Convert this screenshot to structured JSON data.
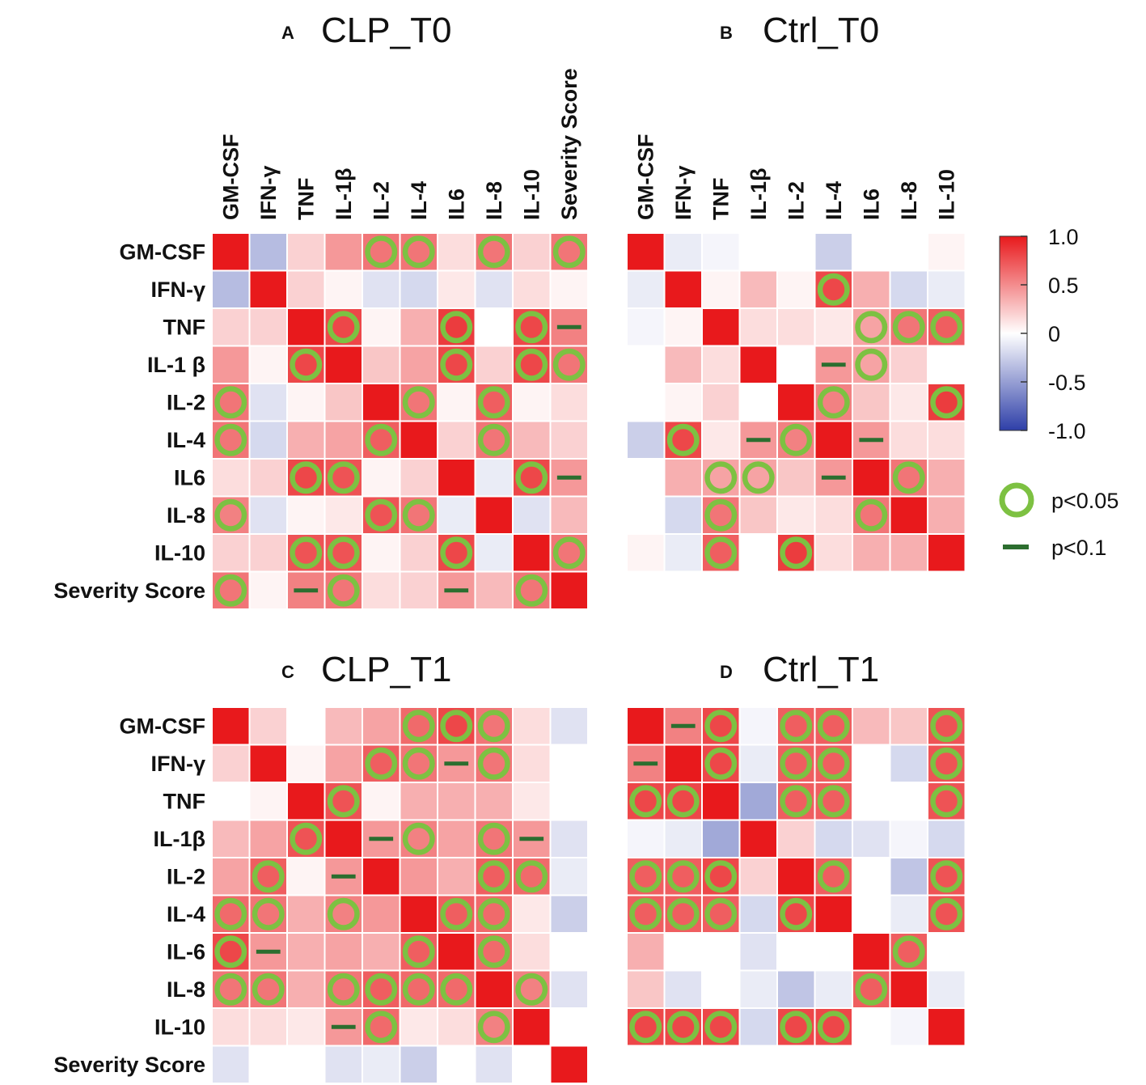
{
  "colors": {
    "positive": "#e8191c",
    "negative": "#2e3fa8",
    "neutral": "#ffffff",
    "sig_circle": "#7dc142",
    "trend_bar": "#2c6e2f"
  },
  "chart_data": [
    {
      "type": "heatmap",
      "panel": "A",
      "title": "CLP_T0",
      "show_column_labels": true,
      "columns": [
        "GM-CSF",
        "IFN-γ",
        "TNF",
        "IL-1β",
        "IL-2",
        "IL-4",
        "IL6",
        "IL-8",
        "IL-10",
        "Severity Score"
      ],
      "rows": [
        "GM-CSF",
        "IFN-γ",
        "TNF",
        "IL-1 β",
        "IL-2",
        "IL-4",
        "IL6",
        "IL-8",
        "IL-10",
        "Severity Score"
      ],
      "values": [
        [
          1,
          -0.35,
          0.2,
          0.45,
          0.6,
          0.6,
          0.15,
          0.6,
          0.2,
          0.6
        ],
        [
          -0.35,
          1,
          0.2,
          0.05,
          -0.15,
          -0.2,
          0.1,
          -0.15,
          0.15,
          0.05
        ],
        [
          0.2,
          0.2,
          1,
          0.8,
          0.05,
          0.35,
          0.85,
          0,
          0.8,
          0.55
        ],
        [
          0.45,
          0.05,
          0.8,
          1,
          0.25,
          0.4,
          0.8,
          0.2,
          0.8,
          0.6
        ],
        [
          0.6,
          -0.15,
          0.05,
          0.25,
          1,
          0.6,
          0.05,
          0.7,
          0.05,
          0.15
        ],
        [
          0.6,
          -0.2,
          0.35,
          0.4,
          0.7,
          1,
          0.2,
          0.6,
          0.3,
          0.2
        ],
        [
          0.15,
          0.2,
          0.8,
          0.75,
          0.05,
          0.2,
          1,
          -0.1,
          0.8,
          0.45
        ],
        [
          0.55,
          -0.15,
          0.05,
          0.1,
          0.75,
          0.6,
          -0.1,
          1,
          -0.15,
          0.3
        ],
        [
          0.2,
          0.2,
          0.75,
          0.75,
          0.05,
          0.2,
          0.8,
          -0.1,
          1,
          0.6
        ],
        [
          0.6,
          0.05,
          0.55,
          0.6,
          0.15,
          0.2,
          0.45,
          0.3,
          0.6,
          1
        ]
      ],
      "significance": [
        [
          0,
          0,
          0,
          0,
          2,
          2,
          0,
          2,
          0,
          2
        ],
        [
          0,
          0,
          0,
          0,
          0,
          0,
          0,
          0,
          0,
          0
        ],
        [
          0,
          0,
          0,
          2,
          0,
          0,
          2,
          0,
          2,
          1
        ],
        [
          0,
          0,
          2,
          0,
          0,
          0,
          2,
          0,
          2,
          2
        ],
        [
          2,
          0,
          0,
          0,
          0,
          2,
          0,
          2,
          0,
          0
        ],
        [
          2,
          0,
          0,
          0,
          2,
          0,
          0,
          2,
          0,
          0
        ],
        [
          0,
          0,
          2,
          2,
          0,
          0,
          0,
          0,
          2,
          1
        ],
        [
          2,
          0,
          0,
          0,
          2,
          2,
          0,
          0,
          0,
          0
        ],
        [
          0,
          0,
          2,
          2,
          0,
          0,
          2,
          0,
          0,
          2
        ],
        [
          2,
          0,
          1,
          2,
          0,
          0,
          1,
          0,
          2,
          0
        ]
      ]
    },
    {
      "type": "heatmap",
      "panel": "B",
      "title": "Ctrl_T0",
      "show_column_labels": true,
      "columns": [
        "GM-CSF",
        "IFN-γ",
        "TNF",
        "IL-1β",
        "IL-2",
        "IL-4",
        "IL6",
        "IL-8",
        "IL-10"
      ],
      "rows": [
        "GM-CSF",
        "IFN-γ",
        "TNF",
        "IL-1β",
        "IL-2",
        "IL-4",
        "IL6",
        "IL-8",
        "IL-10"
      ],
      "values": [
        [
          1,
          -0.1,
          -0.05,
          0,
          0,
          -0.25,
          0,
          0,
          0.05
        ],
        [
          -0.1,
          1,
          0.05,
          0.3,
          0.05,
          0.8,
          0.35,
          -0.2,
          -0.1
        ],
        [
          -0.05,
          0.05,
          1,
          0.15,
          0.15,
          0.1,
          0.4,
          0.6,
          0.7
        ],
        [
          0,
          0.3,
          0.15,
          1,
          0,
          0.45,
          0.4,
          0.2,
          0
        ],
        [
          0,
          0.05,
          0.2,
          0,
          1,
          0.55,
          0.25,
          0.1,
          0.85
        ],
        [
          -0.25,
          0.8,
          0.1,
          0.45,
          0.55,
          1,
          0.45,
          0.15,
          0.15
        ],
        [
          0,
          0.35,
          0.4,
          0.4,
          0.25,
          0.45,
          1,
          0.6,
          0.35
        ],
        [
          0,
          -0.2,
          0.6,
          0.25,
          0.1,
          0.15,
          0.6,
          1,
          0.35
        ],
        [
          0.05,
          -0.1,
          0.7,
          0,
          0.85,
          0.15,
          0.35,
          0.35,
          1
        ]
      ],
      "significance": [
        [
          0,
          0,
          0,
          0,
          0,
          0,
          0,
          0,
          0
        ],
        [
          0,
          0,
          0,
          0,
          0,
          2,
          0,
          0,
          0
        ],
        [
          0,
          0,
          0,
          0,
          0,
          0,
          2,
          2,
          2
        ],
        [
          0,
          0,
          0,
          0,
          0,
          1,
          2,
          0,
          0
        ],
        [
          0,
          0,
          0,
          0,
          0,
          2,
          0,
          0,
          2
        ],
        [
          0,
          2,
          0,
          1,
          2,
          0,
          1,
          0,
          0
        ],
        [
          0,
          0,
          2,
          2,
          0,
          1,
          0,
          2,
          0
        ],
        [
          0,
          0,
          2,
          0,
          0,
          0,
          2,
          0,
          0
        ],
        [
          0,
          0,
          2,
          0,
          2,
          0,
          0,
          0,
          0
        ]
      ]
    },
    {
      "type": "heatmap",
      "panel": "C",
      "title": "CLP_T1",
      "show_column_labels": false,
      "columns": [
        "GM-CSF",
        "IFN-γ",
        "TNF",
        "IL-1β",
        "IL-2",
        "IL-4",
        "IL-6",
        "IL-8",
        "IL-10",
        "Severity Score"
      ],
      "rows": [
        "GM-CSF",
        "IFN-γ",
        "TNF",
        "IL-1β",
        "IL-2",
        "IL-4",
        "IL-6",
        "IL-8",
        "IL-10",
        "Severity Score"
      ],
      "values": [
        [
          1,
          0.2,
          0,
          0.3,
          0.4,
          0.65,
          0.8,
          0.6,
          0.15,
          -0.15
        ],
        [
          0.2,
          1,
          0.05,
          0.4,
          0.7,
          0.6,
          0.45,
          0.6,
          0.15,
          0
        ],
        [
          0,
          0.05,
          1,
          0.75,
          0.05,
          0.35,
          0.35,
          0.35,
          0.1,
          0
        ],
        [
          0.3,
          0.4,
          0.75,
          1,
          0.45,
          0.55,
          0.4,
          0.6,
          0.45,
          -0.15
        ],
        [
          0.4,
          0.7,
          0.05,
          0.45,
          1,
          0.45,
          0.35,
          0.7,
          0.65,
          -0.1
        ],
        [
          0.65,
          0.6,
          0.35,
          0.55,
          0.45,
          1,
          0.7,
          0.65,
          0.1,
          -0.25
        ],
        [
          0.8,
          0.45,
          0.35,
          0.4,
          0.35,
          0.7,
          1,
          0.65,
          0.15,
          0
        ],
        [
          0.6,
          0.6,
          0.35,
          0.6,
          0.7,
          0.65,
          0.65,
          1,
          0.55,
          -0.15
        ],
        [
          0.15,
          0.15,
          0.1,
          0.45,
          0.65,
          0.1,
          0.15,
          0.55,
          1,
          0
        ],
        [
          -0.15,
          0,
          0,
          -0.15,
          -0.1,
          -0.25,
          0,
          -0.15,
          0,
          1
        ]
      ],
      "significance": [
        [
          0,
          0,
          0,
          0,
          0,
          2,
          2,
          2,
          0,
          0
        ],
        [
          0,
          0,
          0,
          0,
          2,
          2,
          1,
          2,
          0,
          0
        ],
        [
          0,
          0,
          0,
          2,
          0,
          0,
          0,
          0,
          0,
          0
        ],
        [
          0,
          0,
          2,
          0,
          1,
          2,
          0,
          2,
          1,
          0
        ],
        [
          0,
          2,
          0,
          1,
          0,
          0,
          0,
          2,
          2,
          0
        ],
        [
          2,
          2,
          0,
          2,
          0,
          0,
          2,
          2,
          0,
          0
        ],
        [
          2,
          1,
          0,
          0,
          0,
          2,
          0,
          2,
          0,
          0
        ],
        [
          2,
          2,
          0,
          2,
          2,
          2,
          2,
          0,
          2,
          0
        ],
        [
          0,
          0,
          0,
          1,
          2,
          0,
          0,
          2,
          0,
          0
        ],
        [
          0,
          0,
          0,
          0,
          0,
          0,
          0,
          0,
          0,
          0
        ]
      ]
    },
    {
      "type": "heatmap",
      "panel": "D",
      "title": "Ctrl_T1",
      "show_column_labels": false,
      "columns": [
        "GM-CSF",
        "IFN-γ",
        "TNF",
        "IL-1β",
        "IL-2",
        "IL-4",
        "IL-6",
        "IL-8",
        "IL-10"
      ],
      "rows": [
        "GM-CSF",
        "IFN-γ",
        "TNF",
        "IL-1β",
        "IL-2",
        "IL-4",
        "IL-6",
        "IL-8",
        "IL-10"
      ],
      "values": [
        [
          1,
          0.55,
          0.8,
          -0.05,
          0.7,
          0.7,
          0.3,
          0.25,
          0.75
        ],
        [
          0.55,
          1,
          0.8,
          -0.1,
          0.7,
          0.7,
          0,
          -0.2,
          0.75
        ],
        [
          0.8,
          0.8,
          1,
          -0.45,
          0.7,
          0.7,
          0,
          0,
          0.75
        ],
        [
          -0.05,
          -0.1,
          -0.45,
          1,
          0.2,
          -0.2,
          -0.15,
          -0.05,
          -0.2
        ],
        [
          0.7,
          0.7,
          0.8,
          0.2,
          1,
          0.7,
          0,
          -0.3,
          0.75
        ],
        [
          0.7,
          0.7,
          0.7,
          -0.2,
          0.8,
          1,
          0,
          -0.1,
          0.75
        ],
        [
          0.35,
          0,
          0,
          -0.15,
          0,
          0,
          1,
          0.7,
          0
        ],
        [
          0.25,
          -0.15,
          0,
          -0.1,
          -0.3,
          -0.1,
          0.7,
          1,
          -0.1
        ],
        [
          0.8,
          0.8,
          0.8,
          -0.2,
          0.8,
          0.8,
          0,
          -0.05,
          1
        ]
      ],
      "significance": [
        [
          0,
          1,
          2,
          0,
          2,
          2,
          0,
          0,
          2
        ],
        [
          1,
          0,
          2,
          0,
          2,
          2,
          0,
          0,
          2
        ],
        [
          2,
          2,
          0,
          0,
          2,
          2,
          0,
          0,
          2
        ],
        [
          0,
          0,
          0,
          0,
          0,
          0,
          0,
          0,
          0
        ],
        [
          2,
          2,
          2,
          0,
          0,
          2,
          0,
          0,
          2
        ],
        [
          2,
          2,
          2,
          0,
          2,
          0,
          0,
          0,
          2
        ],
        [
          0,
          0,
          0,
          0,
          0,
          0,
          0,
          2,
          0
        ],
        [
          0,
          0,
          0,
          0,
          0,
          0,
          2,
          0,
          0
        ],
        [
          2,
          2,
          2,
          0,
          2,
          2,
          0,
          0,
          0
        ]
      ]
    }
  ],
  "legend": {
    "colorbar_ticks": [
      "1.0",
      "0.5",
      "0",
      "-0.5",
      "-1.0"
    ],
    "sig_circle_label": "p<0.05",
    "trend_bar_label": "p<0.1"
  }
}
